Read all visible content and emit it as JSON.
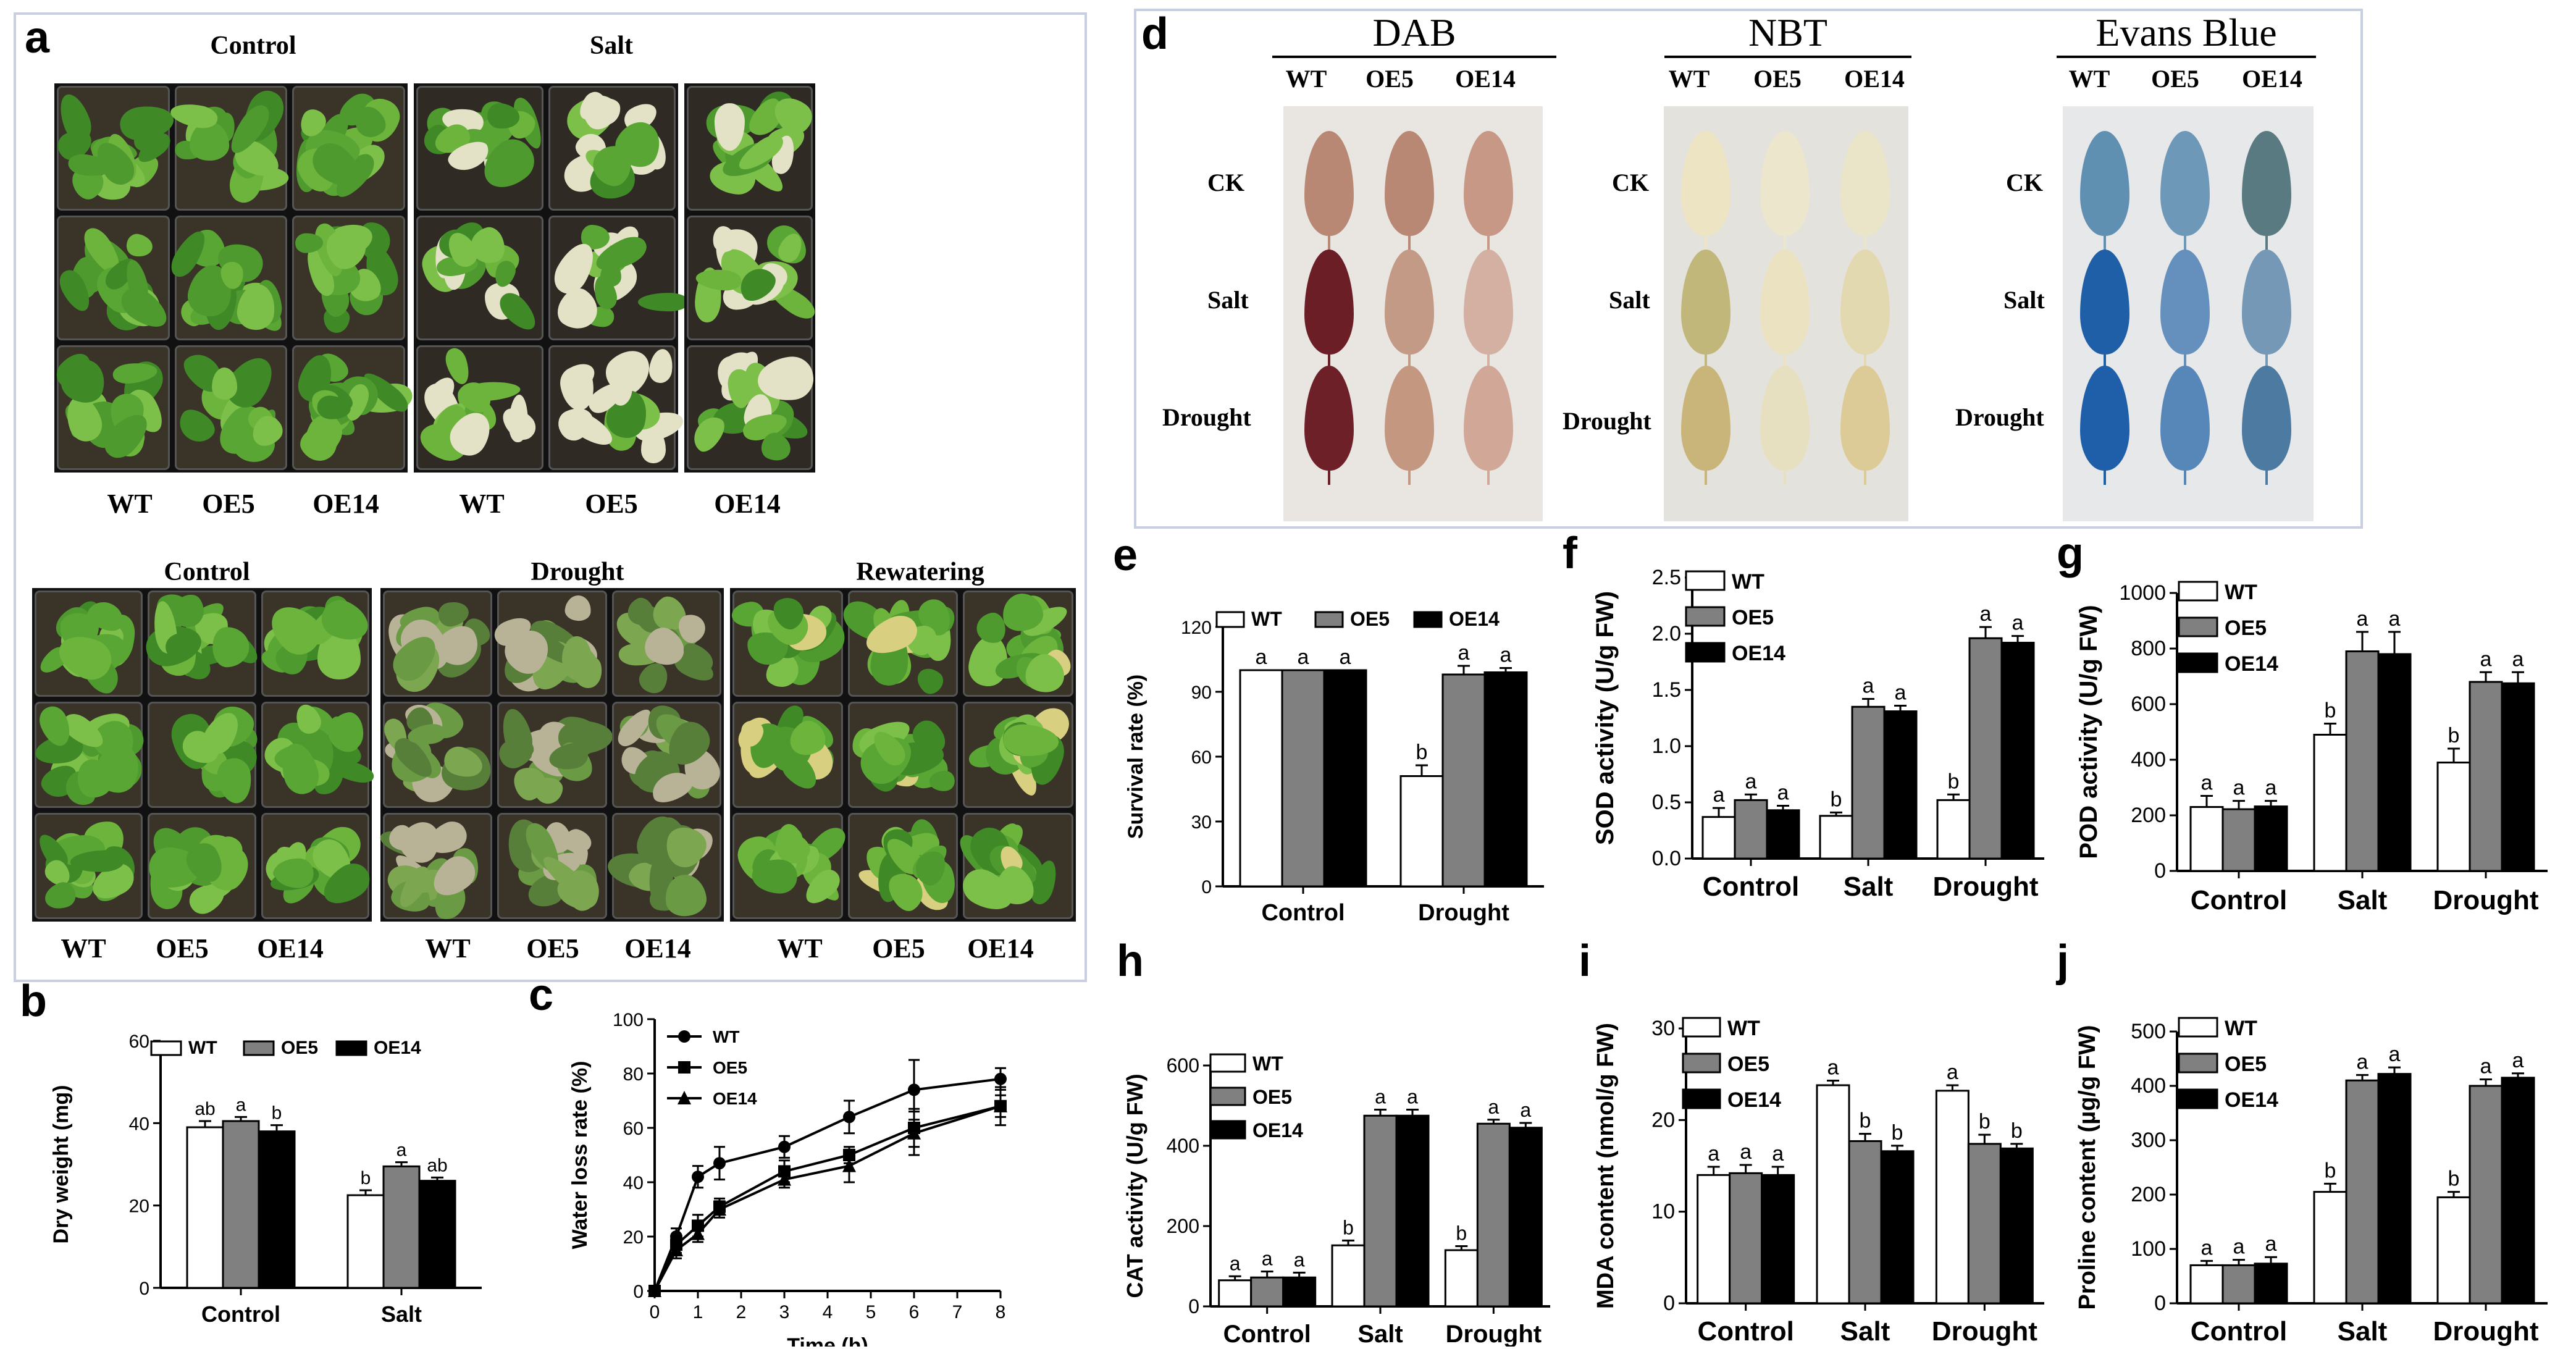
{
  "panel_labels": {
    "a": "a",
    "b": "b",
    "c": "c",
    "d": "d",
    "e": "e",
    "f": "f",
    "g": "g",
    "h": "h",
    "i": "i",
    "j": "j"
  },
  "panel_a": {
    "top_titles": [
      "Control",
      "Salt"
    ],
    "top_genotypes": [
      "WT",
      "OE5",
      "OE14",
      "WT",
      "OE5",
      "OE14"
    ],
    "bottom_titles": [
      "Control",
      "Drought",
      "Rewatering"
    ],
    "bottom_genotypes": [
      "WT",
      "OE5",
      "OE14",
      "WT",
      "OE5",
      "OE14",
      "WT",
      "OE5",
      "OE14"
    ]
  },
  "panel_d": {
    "stains": [
      {
        "name": "DAB",
        "columns": [
          "WT",
          "OE5",
          "OE14"
        ],
        "rows": [
          "CK",
          "Salt",
          "Drought"
        ]
      },
      {
        "name": "NBT",
        "columns": [
          "WT",
          "OE5",
          "OE14"
        ],
        "rows": [
          "CK",
          "Salt",
          "Drought"
        ]
      },
      {
        "name": "Evans Blue",
        "columns": [
          "WT",
          "OE5",
          "OE14"
        ],
        "rows": [
          "CK",
          "Salt",
          "Drought"
        ]
      }
    ]
  },
  "colors": {
    "WT": "#ffffff",
    "OE5": "#808080",
    "OE14": "#000000",
    "frame": "#c8cfe0"
  },
  "chart_data": [
    {
      "id": "b",
      "type": "bar",
      "ylabel": "Dry weight (mg)",
      "ylim": [
        0,
        60
      ],
      "yticks": [
        0,
        20,
        40,
        60
      ],
      "categories": [
        "Control",
        "Salt"
      ],
      "series": [
        {
          "name": "WT",
          "values": [
            39,
            22.5
          ],
          "errors": [
            1.5,
            1.2
          ],
          "letters": [
            "ab",
            "b"
          ]
        },
        {
          "name": "OE5",
          "values": [
            40.5,
            29.5
          ],
          "errors": [
            1.0,
            1.0
          ],
          "letters": [
            "a",
            "a"
          ]
        },
        {
          "name": "OE14",
          "values": [
            38,
            26
          ],
          "errors": [
            1.5,
            0.8
          ],
          "letters": [
            "b",
            "ab"
          ]
        }
      ],
      "legend": "top-horizontal"
    },
    {
      "id": "c",
      "type": "line",
      "xlabel": "Time (h)",
      "ylabel": "Water loss rate (%)",
      "xlim": [
        0,
        8
      ],
      "ylim": [
        0,
        100
      ],
      "xticks": [
        0,
        1,
        2,
        3,
        4,
        5,
        6,
        7,
        8
      ],
      "yticks": [
        0,
        20,
        40,
        60,
        80,
        100
      ],
      "x": [
        0,
        0.5,
        1,
        1.5,
        3,
        4.5,
        6,
        8
      ],
      "series": [
        {
          "name": "WT",
          "marker": "circle",
          "values": [
            0,
            20,
            42,
            47,
            53,
            64,
            74,
            78
          ],
          "errors": [
            0,
            3,
            4,
            6,
            4,
            6,
            11,
            4
          ]
        },
        {
          "name": "OE5",
          "marker": "square",
          "values": [
            0,
            17,
            24,
            31,
            44,
            50,
            60,
            68
          ],
          "errors": [
            0,
            3,
            4,
            3,
            4,
            3,
            7,
            7
          ]
        },
        {
          "name": "OE14",
          "marker": "triangle",
          "values": [
            0,
            15,
            21,
            30,
            41,
            46,
            58,
            68
          ],
          "errors": [
            0,
            3,
            3,
            3,
            3,
            6,
            8,
            4
          ]
        }
      ],
      "legend": "top-left"
    },
    {
      "id": "e",
      "type": "bar",
      "ylabel": "Survival rate (%)",
      "ylim": [
        0,
        120
      ],
      "yticks": [
        0,
        30,
        60,
        90,
        120
      ],
      "categories": [
        "Control",
        "Drought"
      ],
      "series": [
        {
          "name": "WT",
          "values": [
            100,
            51
          ],
          "errors": [
            0,
            5
          ],
          "letters": [
            "a",
            "b"
          ]
        },
        {
          "name": "OE5",
          "values": [
            100,
            98
          ],
          "errors": [
            0,
            4
          ],
          "letters": [
            "a",
            "a"
          ]
        },
        {
          "name": "OE14",
          "values": [
            100,
            99
          ],
          "errors": [
            0,
            2
          ],
          "letters": [
            "a",
            "a"
          ]
        }
      ],
      "legend": "top-horizontal"
    },
    {
      "id": "f",
      "type": "bar",
      "ylabel": "SOD activity (U/g FW)",
      "ylim": [
        0,
        2.5
      ],
      "yticks": [
        0.0,
        0.5,
        1.0,
        1.5,
        2.0,
        2.5
      ],
      "tickdecimals": 1,
      "categories": [
        "Control",
        "Salt",
        "Drought"
      ],
      "series": [
        {
          "name": "WT",
          "values": [
            0.37,
            0.38,
            0.52
          ],
          "errors": [
            0.08,
            0.03,
            0.05
          ],
          "letters": [
            "a",
            "b",
            "b"
          ]
        },
        {
          "name": "OE5",
          "values": [
            0.52,
            1.35,
            1.96
          ],
          "errors": [
            0.05,
            0.07,
            0.1
          ],
          "letters": [
            "a",
            "a",
            "a"
          ]
        },
        {
          "name": "OE14",
          "values": [
            0.43,
            1.31,
            1.92
          ],
          "errors": [
            0.04,
            0.05,
            0.06
          ],
          "letters": [
            "a",
            "a",
            "a"
          ]
        }
      ],
      "legend": "top-left-vertical"
    },
    {
      "id": "g",
      "type": "bar",
      "ylabel": "POD activity (U/g FW)",
      "ylim": [
        0,
        1000
      ],
      "yticks": [
        0,
        200,
        400,
        600,
        800,
        1000
      ],
      "categories": [
        "Control",
        "Salt",
        "Drought"
      ],
      "series": [
        {
          "name": "WT",
          "values": [
            230,
            490,
            390
          ],
          "errors": [
            40,
            40,
            50
          ],
          "letters": [
            "a",
            "b",
            "b"
          ]
        },
        {
          "name": "OE5",
          "values": [
            222,
            790,
            680
          ],
          "errors": [
            30,
            70,
            35
          ],
          "letters": [
            "a",
            "a",
            "a"
          ]
        },
        {
          "name": "OE14",
          "values": [
            232,
            780,
            675
          ],
          "errors": [
            20,
            80,
            40
          ],
          "letters": [
            "a",
            "a",
            "a"
          ]
        }
      ],
      "legend": "top-left-vertical"
    },
    {
      "id": "h",
      "type": "bar",
      "ylabel": "CAT activity (U/g FW)",
      "ylim": [
        0,
        600
      ],
      "yticks": [
        0,
        200,
        400,
        600
      ],
      "categories": [
        "Control",
        "Salt",
        "Drought"
      ],
      "series": [
        {
          "name": "WT",
          "values": [
            65,
            152,
            140
          ],
          "errors": [
            10,
            12,
            10
          ],
          "letters": [
            "a",
            "b",
            "b"
          ]
        },
        {
          "name": "OE5",
          "values": [
            72,
            475,
            455
          ],
          "errors": [
            15,
            15,
            10
          ],
          "letters": [
            "a",
            "a",
            "a"
          ]
        },
        {
          "name": "OE14",
          "values": [
            72,
            475,
            445
          ],
          "errors": [
            12,
            15,
            12
          ],
          "letters": [
            "a",
            "a",
            "a"
          ]
        }
      ],
      "legend": "top-left-vertical"
    },
    {
      "id": "i",
      "type": "bar",
      "ylabel": "MDA content (nmol/g FW)",
      "ylim": [
        0,
        30
      ],
      "yticks": [
        0,
        10,
        20,
        30
      ],
      "categories": [
        "Control",
        "Salt",
        "Drought"
      ],
      "series": [
        {
          "name": "WT",
          "values": [
            14,
            23.8,
            23.2
          ],
          "errors": [
            0.9,
            0.5,
            0.6
          ],
          "letters": [
            "a",
            "a",
            "a"
          ]
        },
        {
          "name": "OE5",
          "values": [
            14.2,
            17.7,
            17.4
          ],
          "errors": [
            0.9,
            0.8,
            1.0
          ],
          "letters": [
            "a",
            "b",
            "b"
          ]
        },
        {
          "name": "OE14",
          "values": [
            14,
            16.6,
            16.9
          ],
          "errors": [
            0.9,
            0.6,
            0.5
          ],
          "letters": [
            "a",
            "b",
            "b"
          ]
        }
      ],
      "legend": "top-left-vertical"
    },
    {
      "id": "j",
      "type": "bar",
      "ylabel": "Proline content (µg/g FW)",
      "ylim": [
        0,
        500
      ],
      "yticks": [
        0,
        100,
        200,
        300,
        400,
        500
      ],
      "categories": [
        "Control",
        "Salt",
        "Drought"
      ],
      "series": [
        {
          "name": "WT",
          "values": [
            70,
            205,
            195
          ],
          "errors": [
            8,
            15,
            10
          ],
          "letters": [
            "a",
            "b",
            "b"
          ]
        },
        {
          "name": "OE5",
          "values": [
            70,
            410,
            400
          ],
          "errors": [
            10,
            10,
            12
          ],
          "letters": [
            "a",
            "a",
            "a"
          ]
        },
        {
          "name": "OE14",
          "values": [
            73,
            422,
            415
          ],
          "errors": [
            12,
            12,
            8
          ],
          "letters": [
            "a",
            "a",
            "a"
          ]
        }
      ],
      "legend": "top-left-vertical"
    }
  ]
}
